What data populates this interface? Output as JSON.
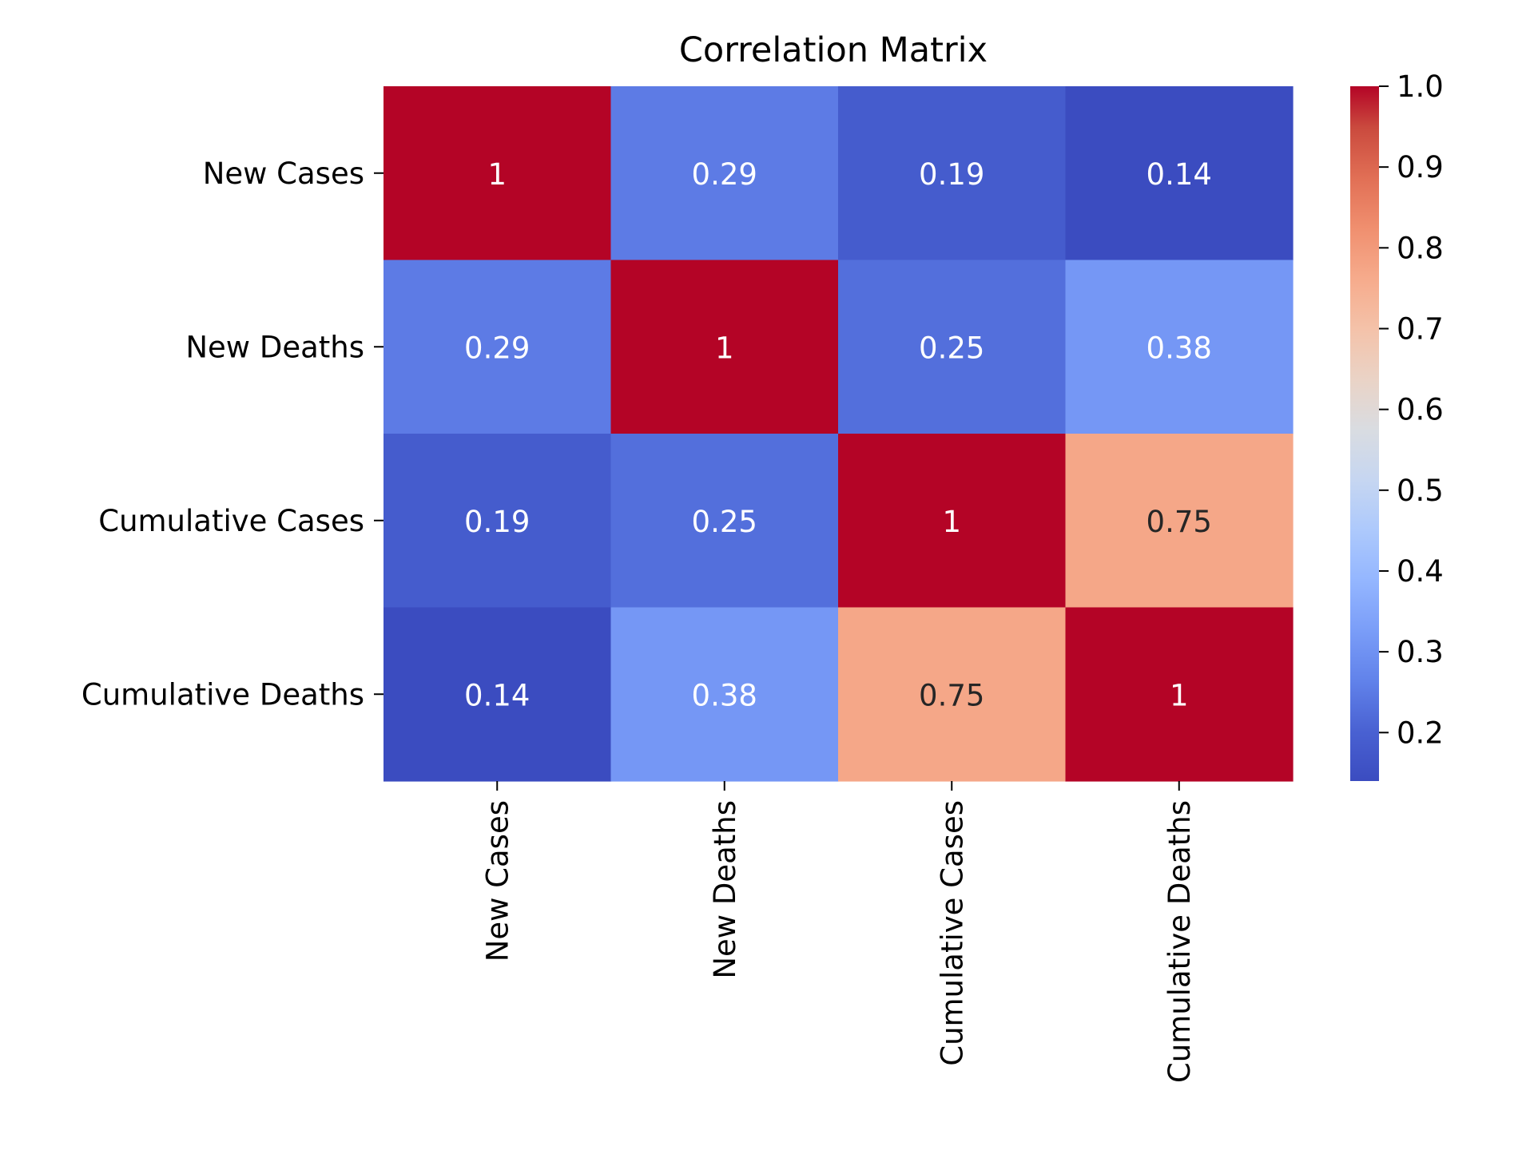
{
  "chart_data": {
    "type": "heatmap",
    "title": "Correlation Matrix",
    "row_labels": [
      "New Cases",
      "New Deaths",
      "Cumulative Cases",
      "Cumulative Deaths"
    ],
    "col_labels": [
      "New Cases",
      "New Deaths",
      "Cumulative Cases",
      "Cumulative Deaths"
    ],
    "values": [
      [
        1,
        0.29,
        0.19,
        0.14
      ],
      [
        0.29,
        1,
        0.25,
        0.38
      ],
      [
        0.19,
        0.25,
        1,
        0.75
      ],
      [
        0.14,
        0.38,
        0.75,
        1
      ]
    ],
    "annotations": [
      [
        "1",
        "0.29",
        "0.19",
        "0.14"
      ],
      [
        "0.29",
        "1",
        "0.25",
        "0.38"
      ],
      [
        "0.19",
        "0.25",
        "1",
        "0.75"
      ],
      [
        "0.14",
        "0.38",
        "0.75",
        "1"
      ]
    ],
    "colormap": "coolwarm",
    "colorbar": {
      "vmin": 0.14,
      "vmax": 1.0,
      "ticks": [
        0.2,
        0.3,
        0.4,
        0.5,
        0.6,
        0.7,
        0.8,
        0.9,
        1.0
      ],
      "tick_labels": [
        "0.2",
        "0.3",
        "0.4",
        "0.5",
        "0.6",
        "0.7",
        "0.8",
        "0.9",
        "1.0"
      ]
    },
    "colors": {
      "cool_end": "#3b4cc0",
      "mid": "#dddddd",
      "warm_end": "#b40426"
    },
    "xlabel": "",
    "ylabel": ""
  }
}
